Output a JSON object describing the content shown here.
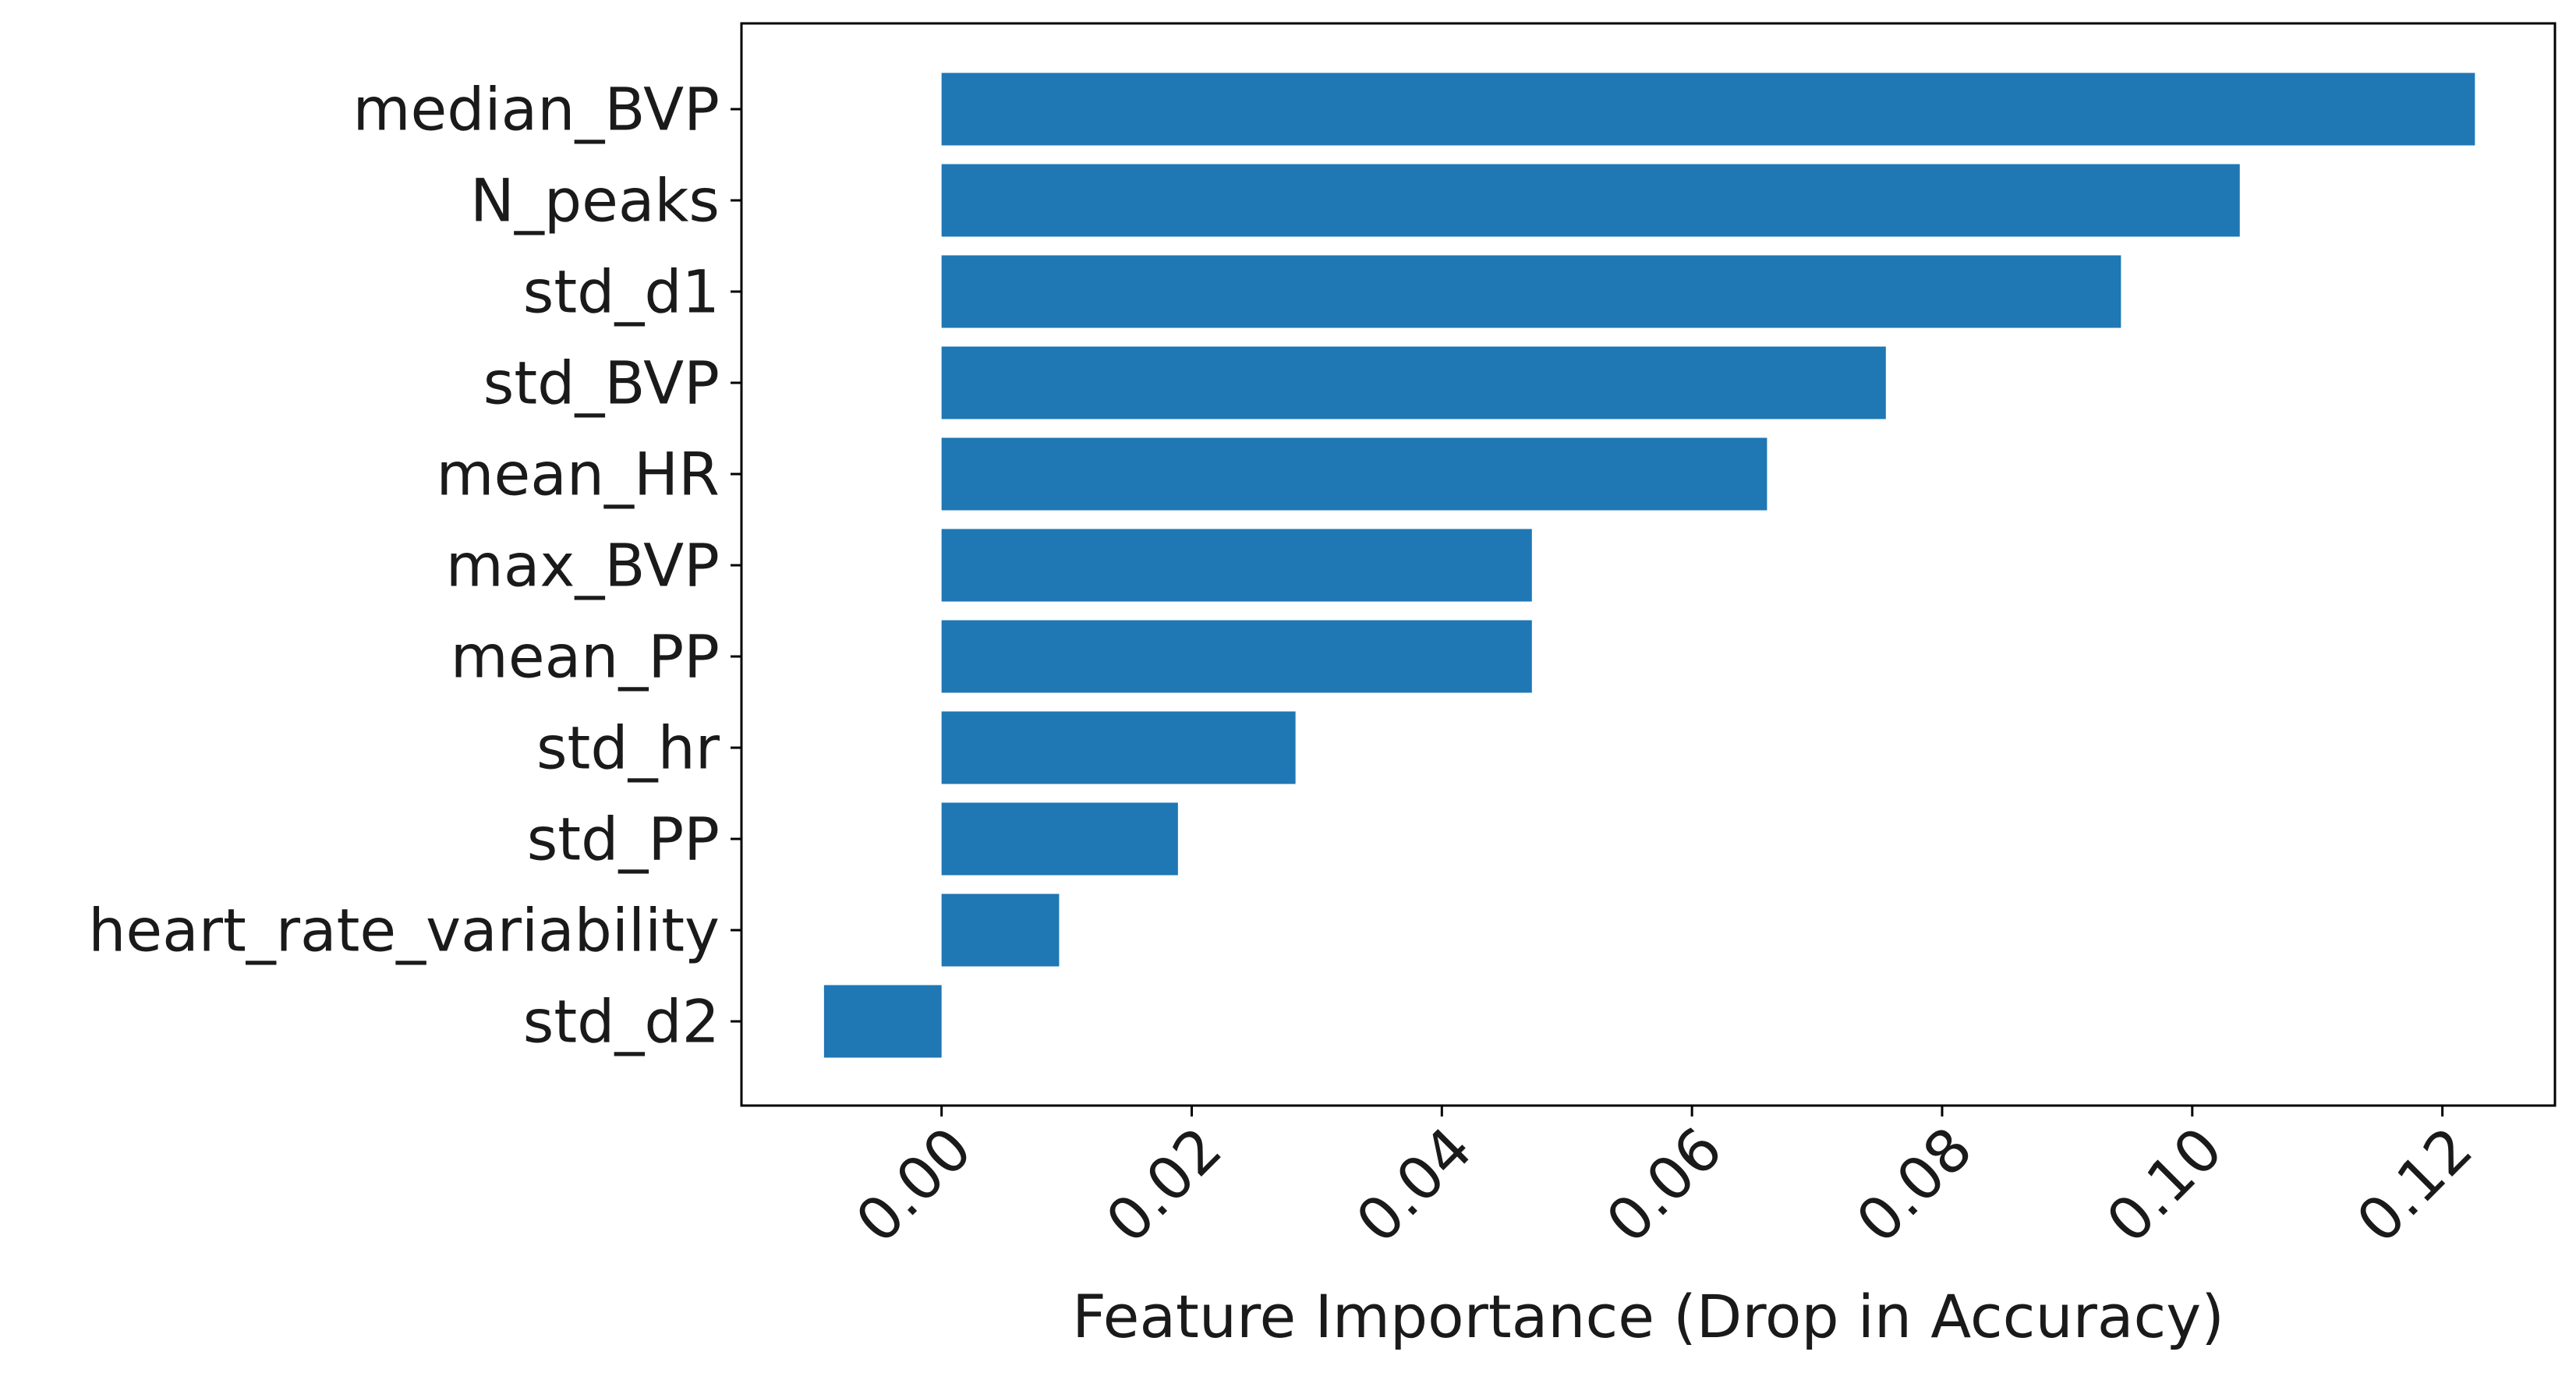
{
  "chart_data": {
    "type": "bar",
    "orientation": "horizontal",
    "categories": [
      "median_BVP",
      "N_peaks",
      "std_d1",
      "std_BVP",
      "mean_HR",
      "max_BVP",
      "mean_PP",
      "std_hr",
      "std_PP",
      "heart_rate_variability",
      "std_d2"
    ],
    "values": [
      0.1226,
      0.1038,
      0.0943,
      0.0755,
      0.066,
      0.0472,
      0.0472,
      0.0283,
      0.0189,
      0.0094,
      -0.0094
    ],
    "xlabel": "Feature Importance (Drop in Accuracy)",
    "ylabel": "",
    "xlim": [
      -0.016,
      0.129
    ],
    "xticks": [
      "0.00",
      "0.02",
      "0.04",
      "0.06",
      "0.08",
      "0.10",
      "0.12"
    ],
    "xtick_values": [
      0.0,
      0.02,
      0.04,
      0.06,
      0.08,
      0.1,
      0.12
    ],
    "bar_color": "#1f77b4",
    "grid": false,
    "legend": "none"
  }
}
